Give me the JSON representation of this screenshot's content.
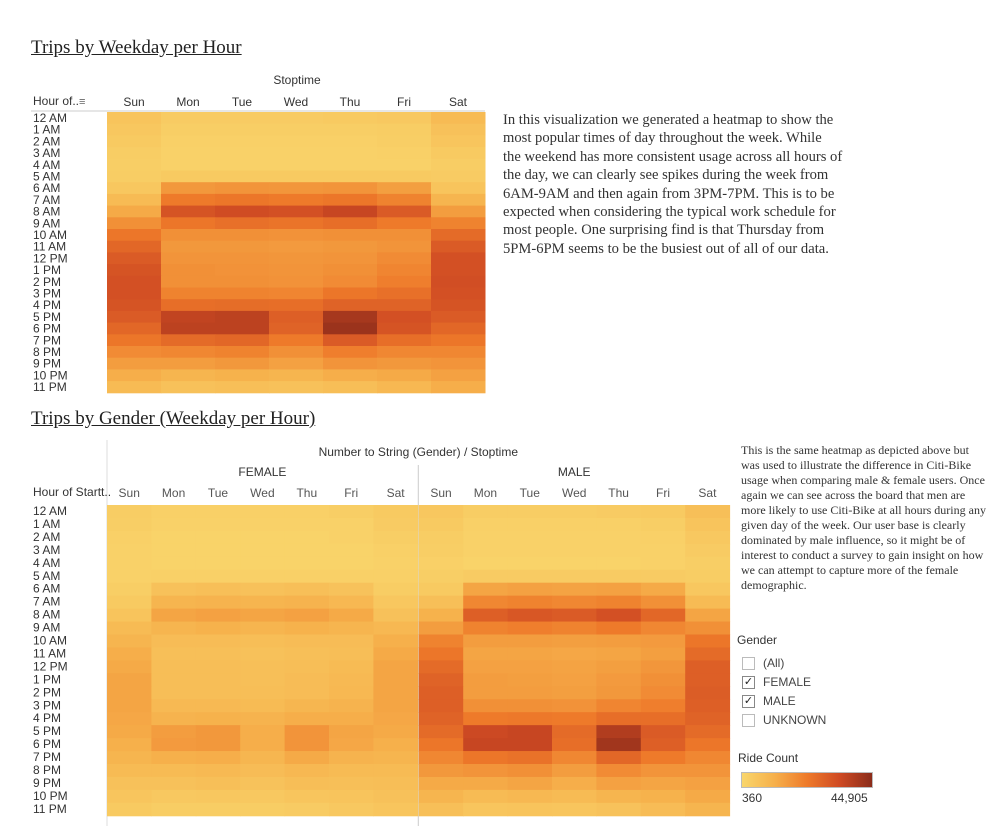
{
  "section1": {
    "title": "Trips by Weekday per Hour",
    "paragraph": "In this visualization we generated a heatmap to show the most popular times of day throughout the week. While the weekend has more consistent usage across all hours of the day, we can clearly see spikes during the week from 6AM-9AM and then again from 3PM-7PM. This is to be expected when considering the typical work schedule for most people. One surprising find is that Thursday from 5PM-6PM seems to be the busiest out of all of our data."
  },
  "section2": {
    "title": "Trips by Gender (Weekday per Hour)",
    "paragraph": "This is the same heatmap as depicted above but was used to illustrate the difference in Citi-Bike usage when comparing male & female users. Once again we can see across the board that men are more likely to use Citi-Bike at all hours during any given day of the week. Our user base is clearly dominated by male influence, so it might be of interest to conduct a survey to gain insight on how we can attempt to capture more of the female demographic."
  },
  "filters": {
    "gender_title": "Gender",
    "options": [
      {
        "label": "(All)",
        "checked": false
      },
      {
        "label": "FEMALE",
        "checked": true
      },
      {
        "label": "MALE",
        "checked": true
      },
      {
        "label": "UNKNOWN",
        "checked": false
      }
    ]
  },
  "color_legend": {
    "title": "Ride Count",
    "min_label": "360",
    "max_label": "44,905",
    "min": 360,
    "max": 44905,
    "colors": [
      "#f9d66c",
      "#f6b04b",
      "#ee7a2a",
      "#cf4a23",
      "#8b2c1a"
    ]
  },
  "chart_data": [
    {
      "type": "heatmap",
      "title": "Trips by Weekday per Hour",
      "column_header": "Stoptime",
      "row_header": "Hour of..",
      "columns": [
        "Sun",
        "Mon",
        "Tue",
        "Wed",
        "Thu",
        "Fri",
        "Sat"
      ],
      "rows": [
        "12 AM",
        "1 AM",
        "2 AM",
        "3 AM",
        "4 AM",
        "5 AM",
        "6 AM",
        "7 AM",
        "8 AM",
        "9 AM",
        "10 AM",
        "11 AM",
        "12 PM",
        "1 PM",
        "2 PM",
        "3 PM",
        "4 PM",
        "5 PM",
        "6 PM",
        "7 PM",
        "8 PM",
        "9 PM",
        "10 PM",
        "11 PM"
      ],
      "values": [
        [
          0.12,
          0.07,
          0.07,
          0.07,
          0.08,
          0.09,
          0.18
        ],
        [
          0.1,
          0.05,
          0.05,
          0.05,
          0.05,
          0.06,
          0.14
        ],
        [
          0.08,
          0.04,
          0.04,
          0.04,
          0.04,
          0.05,
          0.11
        ],
        [
          0.06,
          0.03,
          0.03,
          0.03,
          0.03,
          0.04,
          0.08
        ],
        [
          0.05,
          0.03,
          0.03,
          0.03,
          0.03,
          0.03,
          0.06
        ],
        [
          0.06,
          0.08,
          0.08,
          0.08,
          0.08,
          0.08,
          0.07
        ],
        [
          0.1,
          0.36,
          0.38,
          0.37,
          0.38,
          0.33,
          0.12
        ],
        [
          0.18,
          0.5,
          0.52,
          0.5,
          0.52,
          0.46,
          0.22
        ],
        [
          0.28,
          0.7,
          0.74,
          0.72,
          0.78,
          0.66,
          0.34
        ],
        [
          0.4,
          0.52,
          0.55,
          0.53,
          0.56,
          0.5,
          0.46
        ],
        [
          0.52,
          0.4,
          0.4,
          0.39,
          0.4,
          0.4,
          0.58
        ],
        [
          0.6,
          0.36,
          0.36,
          0.35,
          0.36,
          0.38,
          0.66
        ],
        [
          0.66,
          0.38,
          0.38,
          0.37,
          0.38,
          0.42,
          0.72
        ],
        [
          0.7,
          0.4,
          0.39,
          0.38,
          0.4,
          0.45,
          0.72
        ],
        [
          0.72,
          0.4,
          0.4,
          0.39,
          0.42,
          0.48,
          0.73
        ],
        [
          0.72,
          0.46,
          0.46,
          0.45,
          0.52,
          0.55,
          0.72
        ],
        [
          0.7,
          0.56,
          0.57,
          0.56,
          0.62,
          0.62,
          0.7
        ],
        [
          0.66,
          0.8,
          0.82,
          0.64,
          0.9,
          0.72,
          0.66
        ],
        [
          0.6,
          0.82,
          0.82,
          0.62,
          0.94,
          0.7,
          0.6
        ],
        [
          0.52,
          0.58,
          0.6,
          0.5,
          0.66,
          0.56,
          0.52
        ],
        [
          0.42,
          0.44,
          0.46,
          0.4,
          0.48,
          0.44,
          0.44
        ],
        [
          0.34,
          0.34,
          0.36,
          0.32,
          0.38,
          0.36,
          0.38
        ],
        [
          0.26,
          0.22,
          0.24,
          0.22,
          0.26,
          0.28,
          0.32
        ],
        [
          0.18,
          0.14,
          0.15,
          0.14,
          0.16,
          0.2,
          0.26
        ]
      ]
    },
    {
      "type": "heatmap",
      "title": "Trips by Gender (Weekday per Hour)",
      "column_header": "Number to String (Gender)  /  Stoptime",
      "row_header": "Hour of Startt..",
      "groups": [
        "FEMALE",
        "MALE"
      ],
      "columns": [
        "Sun",
        "Mon",
        "Tue",
        "Wed",
        "Thu",
        "Fri",
        "Sat"
      ],
      "rows": [
        "12 AM",
        "1 AM",
        "2 AM",
        "3 AM",
        "4 AM",
        "5 AM",
        "6 AM",
        "7 AM",
        "8 AM",
        "9 AM",
        "10 AM",
        "11 AM",
        "12 PM",
        "1 PM",
        "2 PM",
        "3 PM",
        "4 PM",
        "5 PM",
        "6 PM",
        "7 PM",
        "8 PM",
        "9 PM",
        "10 PM",
        "11 PM"
      ],
      "values_female": [
        [
          0.06,
          0.04,
          0.04,
          0.04,
          0.04,
          0.05,
          0.08
        ],
        [
          0.05,
          0.03,
          0.03,
          0.03,
          0.03,
          0.03,
          0.07
        ],
        [
          0.04,
          0.02,
          0.02,
          0.02,
          0.02,
          0.03,
          0.05
        ],
        [
          0.03,
          0.02,
          0.02,
          0.02,
          0.02,
          0.02,
          0.04
        ],
        [
          0.03,
          0.02,
          0.02,
          0.02,
          0.02,
          0.02,
          0.03
        ],
        [
          0.03,
          0.04,
          0.04,
          0.04,
          0.04,
          0.04,
          0.04
        ],
        [
          0.05,
          0.14,
          0.15,
          0.14,
          0.15,
          0.13,
          0.06
        ],
        [
          0.08,
          0.22,
          0.23,
          0.22,
          0.23,
          0.2,
          0.1
        ],
        [
          0.12,
          0.3,
          0.32,
          0.3,
          0.32,
          0.28,
          0.14
        ],
        [
          0.18,
          0.22,
          0.24,
          0.22,
          0.24,
          0.22,
          0.2
        ],
        [
          0.22,
          0.17,
          0.17,
          0.16,
          0.17,
          0.17,
          0.25
        ],
        [
          0.26,
          0.15,
          0.15,
          0.14,
          0.15,
          0.16,
          0.28
        ],
        [
          0.28,
          0.16,
          0.16,
          0.15,
          0.16,
          0.18,
          0.3
        ],
        [
          0.3,
          0.16,
          0.16,
          0.15,
          0.17,
          0.19,
          0.3
        ],
        [
          0.3,
          0.16,
          0.16,
          0.16,
          0.17,
          0.2,
          0.3
        ],
        [
          0.3,
          0.19,
          0.19,
          0.18,
          0.21,
          0.23,
          0.3
        ],
        [
          0.29,
          0.23,
          0.24,
          0.23,
          0.26,
          0.26,
          0.29
        ],
        [
          0.28,
          0.34,
          0.36,
          0.26,
          0.38,
          0.3,
          0.28
        ],
        [
          0.25,
          0.35,
          0.36,
          0.26,
          0.38,
          0.29,
          0.25
        ],
        [
          0.22,
          0.25,
          0.26,
          0.21,
          0.28,
          0.23,
          0.22
        ],
        [
          0.18,
          0.18,
          0.19,
          0.17,
          0.2,
          0.18,
          0.18
        ],
        [
          0.14,
          0.14,
          0.15,
          0.13,
          0.16,
          0.15,
          0.16
        ],
        [
          0.11,
          0.09,
          0.1,
          0.09,
          0.11,
          0.12,
          0.14
        ],
        [
          0.08,
          0.06,
          0.06,
          0.06,
          0.07,
          0.09,
          0.11
        ]
      ],
      "values_male": [
        [
          0.1,
          0.06,
          0.06,
          0.06,
          0.07,
          0.08,
          0.15
        ],
        [
          0.08,
          0.04,
          0.04,
          0.04,
          0.04,
          0.05,
          0.12
        ],
        [
          0.06,
          0.03,
          0.03,
          0.03,
          0.03,
          0.04,
          0.09
        ],
        [
          0.05,
          0.03,
          0.03,
          0.03,
          0.03,
          0.03,
          0.07
        ],
        [
          0.04,
          0.02,
          0.02,
          0.02,
          0.02,
          0.03,
          0.05
        ],
        [
          0.05,
          0.07,
          0.07,
          0.07,
          0.07,
          0.07,
          0.06
        ],
        [
          0.08,
          0.3,
          0.32,
          0.31,
          0.32,
          0.28,
          0.1
        ],
        [
          0.15,
          0.44,
          0.46,
          0.44,
          0.46,
          0.4,
          0.18
        ],
        [
          0.24,
          0.64,
          0.68,
          0.66,
          0.72,
          0.6,
          0.3
        ],
        [
          0.34,
          0.46,
          0.48,
          0.46,
          0.5,
          0.44,
          0.4
        ],
        [
          0.46,
          0.34,
          0.34,
          0.33,
          0.34,
          0.35,
          0.52
        ],
        [
          0.52,
          0.3,
          0.3,
          0.29,
          0.3,
          0.33,
          0.58
        ],
        [
          0.58,
          0.32,
          0.32,
          0.31,
          0.33,
          0.37,
          0.64
        ],
        [
          0.62,
          0.34,
          0.33,
          0.32,
          0.35,
          0.4,
          0.64
        ],
        [
          0.64,
          0.34,
          0.34,
          0.33,
          0.36,
          0.42,
          0.65
        ],
        [
          0.64,
          0.4,
          0.4,
          0.39,
          0.45,
          0.48,
          0.64
        ],
        [
          0.62,
          0.5,
          0.51,
          0.5,
          0.56,
          0.56,
          0.62
        ],
        [
          0.58,
          0.76,
          0.78,
          0.58,
          0.86,
          0.66,
          0.58
        ],
        [
          0.52,
          0.78,
          0.78,
          0.56,
          0.92,
          0.64,
          0.52
        ],
        [
          0.44,
          0.52,
          0.54,
          0.44,
          0.6,
          0.5,
          0.44
        ],
        [
          0.36,
          0.38,
          0.4,
          0.34,
          0.42,
          0.38,
          0.38
        ],
        [
          0.28,
          0.28,
          0.3,
          0.26,
          0.32,
          0.3,
          0.32
        ],
        [
          0.22,
          0.18,
          0.2,
          0.18,
          0.22,
          0.24,
          0.28
        ],
        [
          0.15,
          0.11,
          0.12,
          0.11,
          0.13,
          0.17,
          0.22
        ]
      ]
    }
  ]
}
